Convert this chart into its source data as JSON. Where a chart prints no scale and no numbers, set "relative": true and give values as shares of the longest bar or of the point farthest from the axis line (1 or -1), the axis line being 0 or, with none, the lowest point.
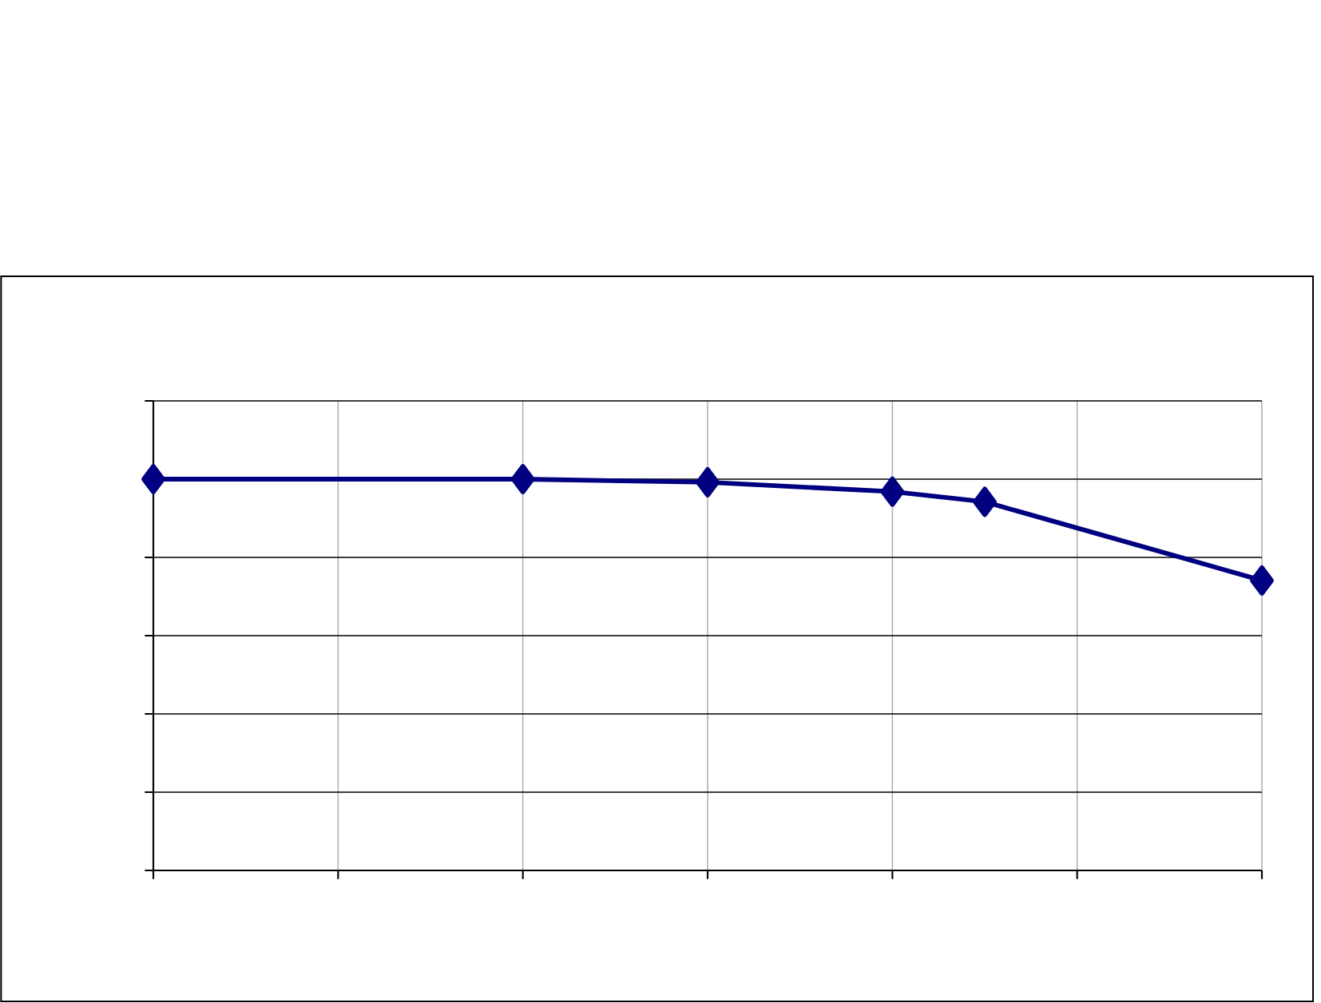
{
  "chart_data": {
    "type": "line",
    "relative": true,
    "categories": [
      null,
      null,
      null,
      null,
      null,
      null,
      null,
      null,
      null,
      null,
      null,
      null,
      null
    ],
    "series": [
      {
        "color": "#000080",
        "values": [
          1,
          null,
          null,
          null,
          1,
          null,
          0.992,
          null,
          0.968,
          0.942,
          null,
          null,
          0.741
        ]
      }
    ],
    "marker": "diamond",
    "line_style": "solid",
    "grid": true
  }
}
